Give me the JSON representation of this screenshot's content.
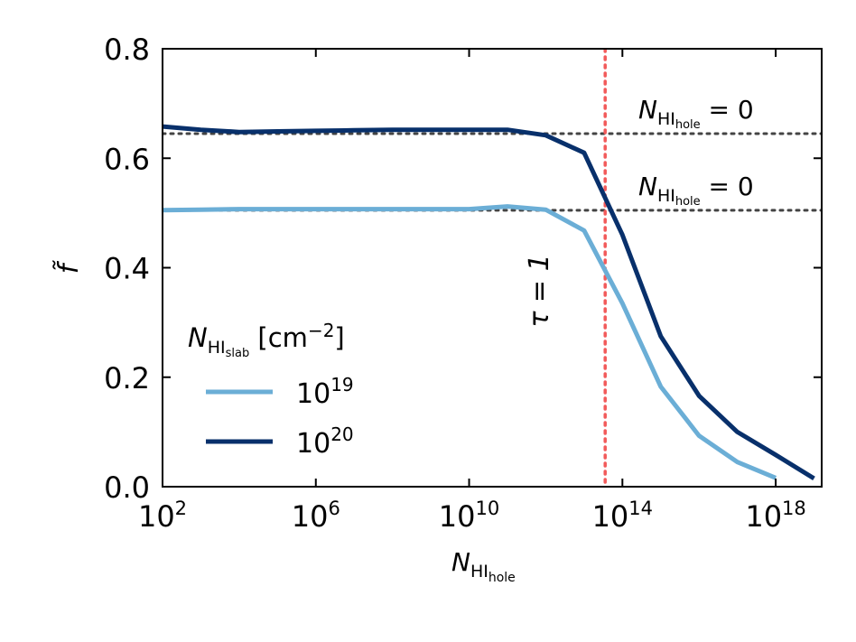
{
  "chart_data": {
    "type": "line",
    "title": "",
    "xscale": "log10",
    "xlim_log10": [
      2,
      19.2
    ],
    "ylim": [
      0,
      0.8
    ],
    "yticks": [
      "0.0",
      "0.2",
      "0.4",
      "0.6",
      "0.8"
    ],
    "xticks": [
      {
        "base": "10",
        "exp": "2"
      },
      {
        "base": "10",
        "exp": "6"
      },
      {
        "base": "10",
        "exp": "10"
      },
      {
        "base": "10",
        "exp": "14"
      },
      {
        "base": "10",
        "exp": "18"
      }
    ],
    "xlabel": {
      "main": "N",
      "sub1": "HI",
      "sub2": "hole"
    },
    "ylabel": "f̃",
    "legend": {
      "title_main": "N",
      "title_sub1": "HI",
      "title_sub2": "slab",
      "title_unit": " [cm",
      "title_unit_exp": "−2",
      "title_unit_end": "]",
      "placement": "lower-left"
    },
    "series": [
      {
        "name": "10^19",
        "label_base": "10",
        "label_exp": "19",
        "color": "#6baed6",
        "x_log10": [
          2,
          3,
          4,
          5,
          6,
          7,
          8,
          9,
          10,
          11,
          12,
          13,
          14,
          15,
          16,
          17,
          18
        ],
        "y": [
          0.505,
          0.506,
          0.507,
          0.507,
          0.507,
          0.507,
          0.507,
          0.507,
          0.507,
          0.512,
          0.506,
          0.468,
          0.335,
          0.183,
          0.093,
          0.045,
          0.016
        ]
      },
      {
        "name": "10^20",
        "label_base": "10",
        "label_exp": "20",
        "color": "#08306b",
        "x_log10": [
          2,
          3,
          4,
          5,
          6,
          7,
          8,
          9,
          10,
          11,
          12,
          13,
          14,
          15,
          16,
          17,
          18,
          19
        ],
        "y": [
          0.658,
          0.652,
          0.648,
          0.649,
          0.65,
          0.651,
          0.652,
          0.652,
          0.652,
          0.652,
          0.642,
          0.61,
          0.46,
          0.275,
          0.166,
          0.1,
          0.058,
          0.015
        ]
      }
    ],
    "hlines": [
      {
        "y": 0.645,
        "color": "#444444",
        "label_main": "N",
        "label_sub1": "HI",
        "label_sub2": "hole",
        "label_rest": " = 0"
      },
      {
        "y": 0.505,
        "color": "#444444",
        "label_main": "N",
        "label_sub1": "HI",
        "label_sub2": "hole",
        "label_rest": " = 0"
      }
    ],
    "vline": {
      "x_log10": 13.55,
      "color": "#f25a5a",
      "label": "τ = 1"
    }
  }
}
